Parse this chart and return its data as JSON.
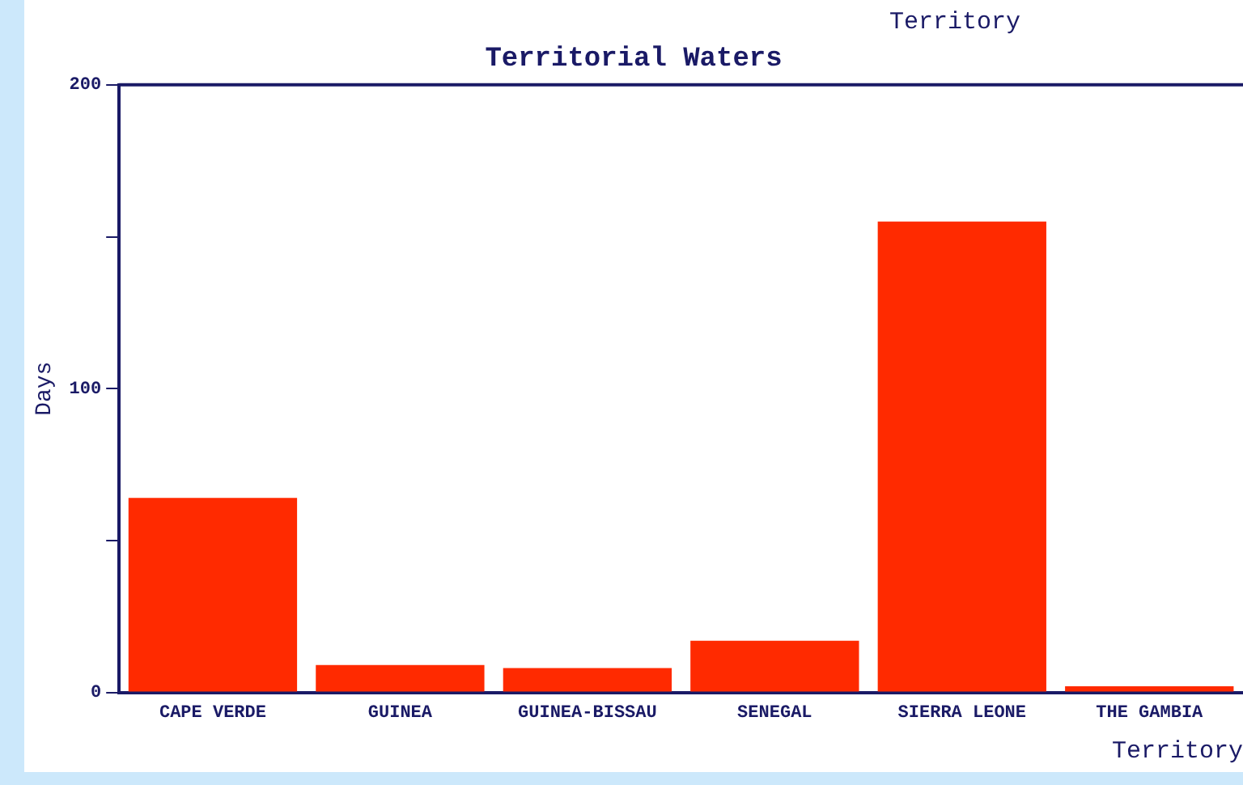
{
  "chart_data": {
    "type": "bar",
    "title": "Territorial Waters",
    "xlabel": "Territory",
    "ylabel": "Days",
    "annotations": [
      "Territory"
    ],
    "categories": [
      "CAPE VERDE",
      "GUINEA",
      "GUINEA-BISSAU",
      "SENEGAL",
      "SIERRA LEONE",
      "THE GAMBIA"
    ],
    "values": [
      64,
      9,
      8,
      17,
      155,
      2
    ],
    "color": "#ff2a00",
    "ylim": [
      0,
      200
    ],
    "yticks": [
      0,
      {
        "value": 50,
        "label": null
      },
      100,
      {
        "value": 150,
        "label": null
      },
      200
    ],
    "grid": false,
    "legend": false
  }
}
